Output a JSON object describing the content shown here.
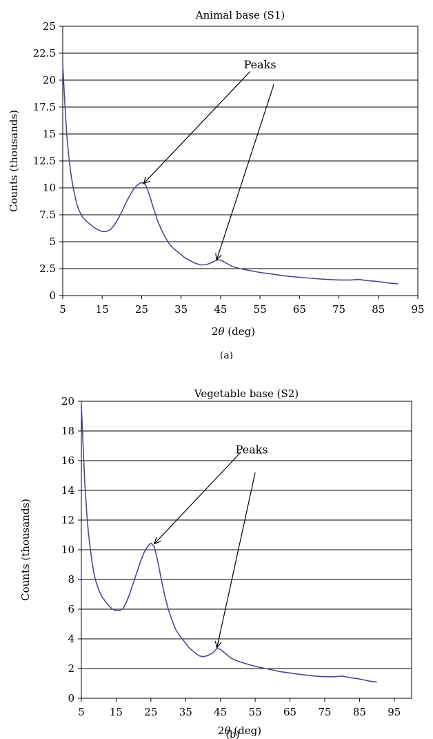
{
  "chart_data": [
    {
      "type": "line",
      "panel": "a",
      "title": "Animal base (S1)",
      "xlabel_pre": "2",
      "xlabel_sym": "θ",
      "xlabel_post": " (deg)",
      "ylabel": "Counts (thousands)",
      "caption": "(a)",
      "xlim": [
        5,
        95
      ],
      "ylim": [
        0,
        25
      ],
      "xticks": [
        5,
        15,
        25,
        35,
        45,
        55,
        65,
        75,
        85,
        95
      ],
      "yticks": [
        0,
        2.5,
        5,
        7.5,
        10,
        12.5,
        15,
        17.5,
        20,
        22.5,
        25
      ],
      "ytick_labels": [
        "0",
        "2.5",
        "5",
        "7.5",
        "10",
        "12.5",
        "15",
        "17.5",
        "20",
        "22.5",
        "25"
      ],
      "grid": "horizontal",
      "line_color": "#4a4a8c",
      "annotation": {
        "text": "Peaks",
        "text_at": [
          55,
          21.1
        ],
        "targets": [
          [
            25.5,
            10.4
          ],
          [
            44,
            3.3
          ]
        ],
        "arrow_origins": [
          [
            52.5,
            20.8
          ],
          [
            58.5,
            19.6
          ]
        ]
      },
      "series": [
        {
          "x": [
            5,
            5.5,
            6,
            6.5,
            7,
            7.5,
            8,
            8.5,
            9,
            10,
            11,
            12,
            13,
            14,
            15,
            16,
            17,
            18,
            19,
            20,
            21,
            22,
            23,
            24,
            25,
            26,
            27,
            28,
            29,
            30,
            31,
            32,
            33,
            34,
            35,
            36,
            37,
            38,
            39,
            40,
            41,
            42,
            43,
            44,
            45,
            46,
            47,
            48,
            49,
            50,
            52,
            55,
            58,
            60,
            62,
            65,
            68,
            70,
            72,
            75,
            78,
            80,
            82,
            85,
            88,
            90
          ],
          "y": [
            21.5,
            18,
            15,
            13,
            11.5,
            10.3,
            9.4,
            8.6,
            8.0,
            7.3,
            6.9,
            6.6,
            6.3,
            6.1,
            5.95,
            5.95,
            6.1,
            6.5,
            7.1,
            7.8,
            8.6,
            9.3,
            9.9,
            10.3,
            10.5,
            10.3,
            9.3,
            8.1,
            7.0,
            6.1,
            5.4,
            4.8,
            4.4,
            4.1,
            3.8,
            3.5,
            3.3,
            3.1,
            2.95,
            2.85,
            2.85,
            2.95,
            3.1,
            3.3,
            3.3,
            3.1,
            2.9,
            2.7,
            2.6,
            2.5,
            2.35,
            2.15,
            2.0,
            1.9,
            1.8,
            1.7,
            1.6,
            1.55,
            1.5,
            1.45,
            1.45,
            1.5,
            1.4,
            1.3,
            1.15,
            1.1
          ]
        }
      ]
    },
    {
      "type": "line",
      "panel": "b",
      "title": "Vegetable base (S2)",
      "xlabel_pre": "2",
      "xlabel_sym": "θ",
      "xlabel_post": " (deg)",
      "ylabel": "Counts (thousands)",
      "caption": "(b)",
      "xlim": [
        5,
        100
      ],
      "ylim": [
        0,
        20
      ],
      "xticks": [
        5,
        15,
        25,
        35,
        45,
        55,
        65,
        75,
        85,
        95
      ],
      "yticks": [
        0,
        2,
        4,
        6,
        8,
        10,
        12,
        14,
        16,
        18,
        20
      ],
      "ytick_labels": [
        "0",
        "2",
        "4",
        "6",
        "8",
        "10",
        "12",
        "14",
        "16",
        "18",
        "20"
      ],
      "grid": "horizontal",
      "line_color": "#4a4a8c",
      "annotation": {
        "text": "Peaks",
        "text_at": [
          54,
          16.5
        ],
        "targets": [
          [
            26,
            10.4
          ],
          [
            44,
            3.4
          ]
        ],
        "arrow_origins": [
          [
            51,
            16.6
          ],
          [
            55,
            15.2
          ]
        ]
      },
      "series": [
        {
          "x": [
            5,
            5.5,
            6,
            6.5,
            7,
            7.5,
            8,
            8.5,
            9,
            10,
            11,
            12,
            13,
            14,
            15,
            16,
            17,
            18,
            19,
            20,
            21,
            22,
            23,
            24,
            25,
            26,
            27,
            28,
            29,
            30,
            31,
            32,
            33,
            34,
            35,
            36,
            37,
            38,
            39,
            40,
            41,
            42,
            43,
            44,
            45,
            46,
            47,
            48,
            49,
            50,
            52,
            55,
            58,
            60,
            62,
            65,
            68,
            70,
            72,
            75,
            78,
            80,
            82,
            85,
            88,
            90
          ],
          "y": [
            19.8,
            17,
            14.5,
            12.6,
            11.2,
            10.2,
            9.3,
            8.6,
            8.0,
            7.3,
            6.8,
            6.5,
            6.2,
            6.0,
            5.9,
            5.9,
            6.05,
            6.5,
            7.1,
            7.8,
            8.5,
            9.2,
            9.8,
            10.2,
            10.45,
            10.2,
            9.2,
            8.0,
            6.9,
            6.0,
            5.3,
            4.7,
            4.3,
            4.0,
            3.7,
            3.4,
            3.2,
            3.0,
            2.85,
            2.8,
            2.85,
            2.95,
            3.1,
            3.35,
            3.3,
            3.1,
            2.9,
            2.7,
            2.6,
            2.5,
            2.35,
            2.15,
            2.0,
            1.9,
            1.8,
            1.7,
            1.6,
            1.55,
            1.5,
            1.45,
            1.45,
            1.5,
            1.4,
            1.3,
            1.15,
            1.1
          ]
        }
      ]
    }
  ]
}
